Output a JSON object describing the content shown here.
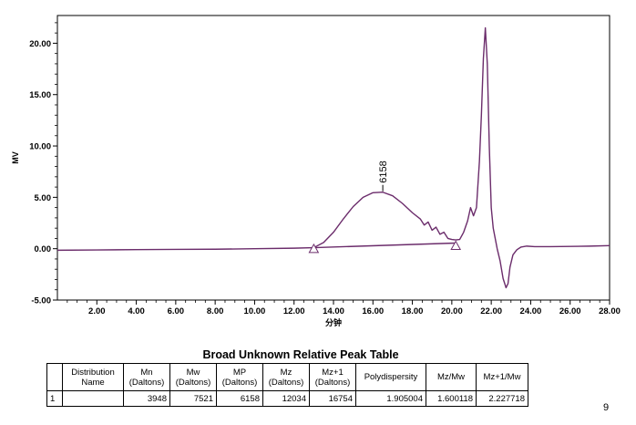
{
  "chart_data": {
    "type": "line",
    "title": "",
    "xlabel": "分钟",
    "ylabel": "MV",
    "xlim": [
      0,
      28
    ],
    "ylim": [
      -5,
      22.7
    ],
    "x_ticks": [
      "2.00",
      "4.00",
      "6.00",
      "8.00",
      "10.00",
      "12.00",
      "14.00",
      "16.00",
      "18.00",
      "20.00",
      "22.00",
      "24.00",
      "26.00",
      "28.00"
    ],
    "y_ticks": [
      "-5.00",
      "0.00",
      "5.00",
      "10.00",
      "15.00",
      "20.00"
    ],
    "grid": false,
    "series": [
      {
        "color": "#6b2c6b",
        "x": [
          0,
          2,
          4,
          6,
          8,
          10,
          12,
          13.0,
          13.5,
          14.0,
          14.5,
          15.0,
          15.5,
          16.0,
          16.5,
          17.0,
          17.5,
          18.0,
          18.4,
          18.6,
          18.8,
          19.0,
          19.2,
          19.4,
          19.6,
          19.8,
          20.0,
          20.2,
          20.4,
          20.6,
          20.8,
          20.95,
          21.1,
          21.25,
          21.4,
          21.5,
          21.6,
          21.7,
          21.8,
          21.9,
          22.0,
          22.1,
          22.2,
          22.3,
          22.45,
          22.6,
          22.75,
          22.85,
          22.95,
          23.1,
          23.3,
          23.5,
          23.8,
          24.2,
          25,
          26,
          27,
          28
        ],
        "y": [
          -0.15,
          -0.12,
          -0.09,
          -0.07,
          -0.05,
          0.0,
          0.05,
          0.1,
          0.6,
          1.6,
          2.9,
          4.1,
          5.0,
          5.45,
          5.5,
          5.15,
          4.4,
          3.5,
          2.9,
          2.3,
          2.6,
          1.8,
          2.1,
          1.4,
          1.6,
          1.0,
          0.9,
          0.85,
          0.9,
          1.6,
          2.7,
          4.0,
          3.2,
          4.0,
          8.5,
          13.0,
          18.5,
          21.5,
          18.0,
          10.0,
          4.0,
          2.0,
          1.0,
          0.0,
          -1.2,
          -2.9,
          -3.8,
          -3.4,
          -1.8,
          -0.6,
          -0.1,
          0.15,
          0.25,
          0.2,
          0.2,
          0.22,
          0.25,
          0.3
        ]
      },
      {
        "color": "#6b2c6b",
        "x": [
          13.0,
          20.2
        ],
        "y": [
          0.1,
          0.55
        ]
      }
    ],
    "markers": [
      {
        "shape": "triangle",
        "x": 13.0,
        "y": -0.2
      },
      {
        "shape": "triangle",
        "x": 20.2,
        "y": 0.1
      }
    ],
    "annotations": [
      {
        "text": "6158",
        "x": 16.5,
        "y": 5.5
      }
    ]
  },
  "table": {
    "title": "Broad Unknown Relative Peak Table",
    "headers": [
      {
        "line1": "",
        "line2": ""
      },
      {
        "line1": "Distribution",
        "line2": "Name"
      },
      {
        "line1": "Mn",
        "line2": "(Daltons)"
      },
      {
        "line1": "Mw",
        "line2": "(Daltons)"
      },
      {
        "line1": "MP",
        "line2": "(Daltons)"
      },
      {
        "line1": "Mz",
        "line2": "(Daltons)"
      },
      {
        "line1": "Mz+1",
        "line2": "(Daltons)"
      },
      {
        "line1": "Polydispersity",
        "line2": ""
      },
      {
        "line1": "Mz/Mw",
        "line2": ""
      },
      {
        "line1": "Mz+1/Mw",
        "line2": ""
      }
    ],
    "rows": [
      [
        "1",
        "",
        "3948",
        "7521",
        "6158",
        "12034",
        "16754",
        "1.905004",
        "1.600118",
        "2.227718"
      ]
    ]
  },
  "page_number": "9"
}
